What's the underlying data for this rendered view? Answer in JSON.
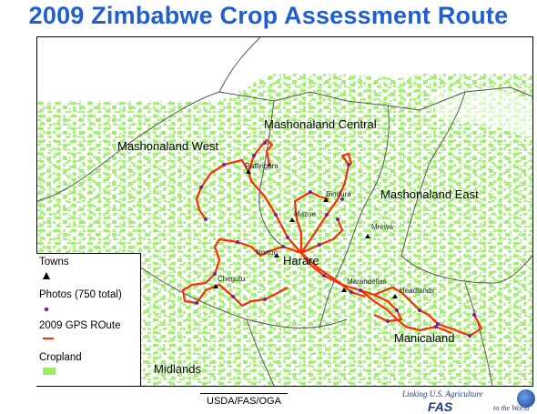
{
  "title": "2009 Zimbabwe Crop Assessment Route",
  "regions": {
    "mashonaland_central": "Mashonaland Central",
    "mashonaland_west": "Mashonaland West",
    "mashonaland_east": "Mashonaland East",
    "manicaland": "Manicaland",
    "midlands": "Midlands"
  },
  "towns": {
    "raffingora": "Raffingora",
    "bindura": "Bindura",
    "mazoe": "Mazoe",
    "mrewa": "Mrewa",
    "norton": "Norton",
    "harare": "Harare",
    "chegutu": "Chegutu",
    "marandellas": "Marandellas",
    "headlands": "Headlands"
  },
  "legend": {
    "towns": "Towns",
    "photos": "Photos (750 total)",
    "route": "2009 GPS ROute",
    "cropland": "Cropland"
  },
  "colors": {
    "title": "#1f5fd1",
    "route": "#ff2a00",
    "photos": "#7a1fa0",
    "cropland": "#99ee66",
    "boundary": "#555555"
  },
  "footer": {
    "source": "USDA/FAS/OGA",
    "tagline": "Linking U.S. Agriculture",
    "fas": "FAS",
    "world": "to the World"
  }
}
